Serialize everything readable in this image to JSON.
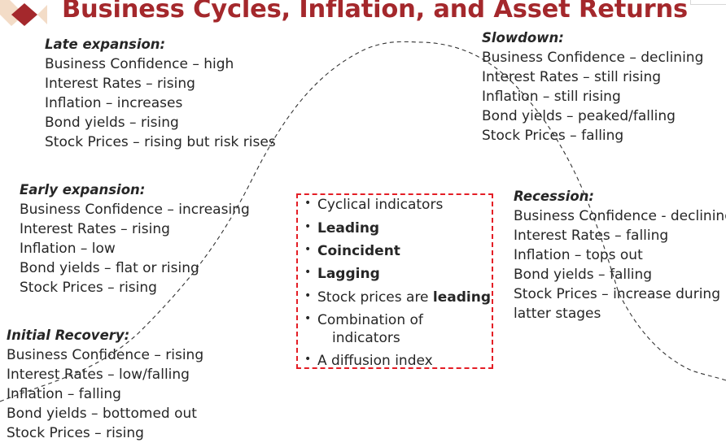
{
  "title": "Business Cycles, Inflation, and Asset Returns",
  "colors": {
    "title": "#a4282c",
    "box_border": "#e41e26",
    "text": "#262626",
    "curve": "#333333"
  },
  "phases": {
    "late_expansion": {
      "heading": "Late expansion:",
      "lines": [
        "Business Confidence – high",
        "Interest Rates – rising",
        "Inflation – increases",
        "Bond yields – rising",
        "Stock Prices – rising but risk rises"
      ]
    },
    "slowdown": {
      "heading": "Slowdown:",
      "lines": [
        "Business Confidence – declining",
        "Interest Rates – still rising",
        "Inflation – still rising",
        "Bond yields – peaked/falling",
        "Stock Prices – falling"
      ]
    },
    "early_expansion": {
      "heading": "Early expansion:",
      "lines": [
        "Business Confidence – increasing",
        "Interest Rates – rising",
        "Inflation – low",
        "Bond yields – flat or rising",
        "Stock Prices – rising"
      ]
    },
    "recession": {
      "heading": "Recession:",
      "lines": [
        "Business Confidence - declining",
        "Interest Rates – falling",
        "Inflation – tops out",
        "Bond yields – falling",
        "Stock Prices – increase during",
        "latter stages"
      ]
    },
    "initial_recovery": {
      "heading": "Initial Recovery:",
      "lines": [
        "Business Confidence – rising",
        "Interest Rates – low/falling",
        "Inflation – falling",
        "Bond yields – bottomed out",
        "Stock Prices – rising"
      ]
    }
  },
  "indicators": {
    "items": [
      {
        "text": "Cyclical indicators"
      },
      {
        "bold": "Leading"
      },
      {
        "bold": "Coincident"
      },
      {
        "bold": "Lagging"
      },
      {
        "text": "Stock prices are ",
        "bold": "leading"
      },
      {
        "text": "Combination of"
      },
      {
        "text": "indicators",
        "continuation": true
      },
      {
        "text": "A diffusion index"
      }
    ]
  }
}
